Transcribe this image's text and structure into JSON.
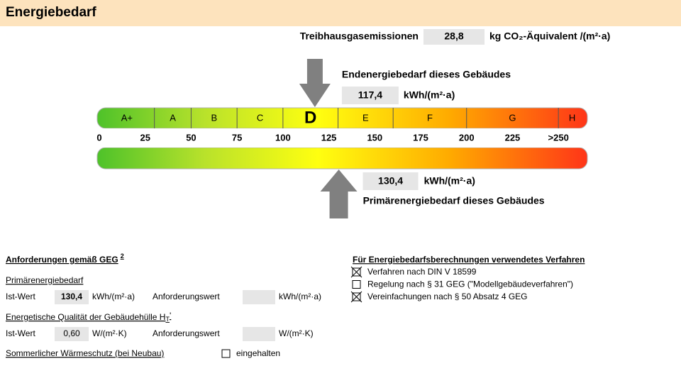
{
  "header": {
    "title": "Energiebedarf"
  },
  "emissions": {
    "label": "Treibhausgasemissionen",
    "value": "28,8",
    "unit": "kg CO₂-Äquivalent /(m²·a)"
  },
  "scale": {
    "xlim": [
      0,
      265
    ],
    "classes": [
      "A+",
      "A",
      "B",
      "C",
      "D",
      "E",
      "F",
      "G",
      "H"
    ],
    "bounds": [
      30,
      50,
      75,
      100,
      130,
      160,
      200,
      250
    ],
    "xticks": [
      0,
      25,
      50,
      75,
      100,
      125,
      150,
      175,
      200,
      225,
      {
        "value": 250,
        "label": ">250"
      }
    ]
  },
  "end_energy": {
    "label": "Endenergiebedarf dieses Gebäudes",
    "value": {
      "value": 117.4,
      "label": "117,4"
    },
    "unit": "kWh/(m²·a)"
  },
  "primary_energy": {
    "label": "Primärenergiebedarf dieses Gebäudes",
    "value": {
      "value": 130.4,
      "label": "130,4"
    },
    "unit": "kWh/(m²·a)"
  },
  "requirements": {
    "title": "Anforderungen gemäß GEG",
    "footnote": "2",
    "primary": {
      "heading": "Primärenergiebedarf",
      "ist_label": "Ist-Wert",
      "ist_value": "130,4",
      "ist_unit": "kWh/(m²·a)",
      "req_label": "Anforderungswert",
      "req_unit": "kWh/(m²·a)"
    },
    "envelope": {
      "heading": "Energetische Qualität der Gebäudehülle H",
      "heading_sub": "T",
      "heading_suffix": "'",
      "ist_label": "Ist-Wert",
      "ist_value": "0,60",
      "ist_unit": "W/(m²·K)",
      "req_label": "Anforderungswert",
      "req_unit": "W/(m²·K)"
    },
    "summer": {
      "label": "Sommerlicher Wärmeschutz (bei Neubau)",
      "option": "eingehalten",
      "checked": false
    }
  },
  "methods": {
    "title": "Für Energiebedarfsberechnungen verwendetes Verfahren",
    "items": [
      {
        "label": "Verfahren nach DIN V 18599",
        "checked": true
      },
      {
        "label": "Regelung nach § 31 GEG (\"Modellgebäudeverfahren\")",
        "checked": false
      },
      {
        "label": "Vereinfachungen nach § 50 Absatz 4 GEG",
        "checked": true
      }
    ]
  }
}
